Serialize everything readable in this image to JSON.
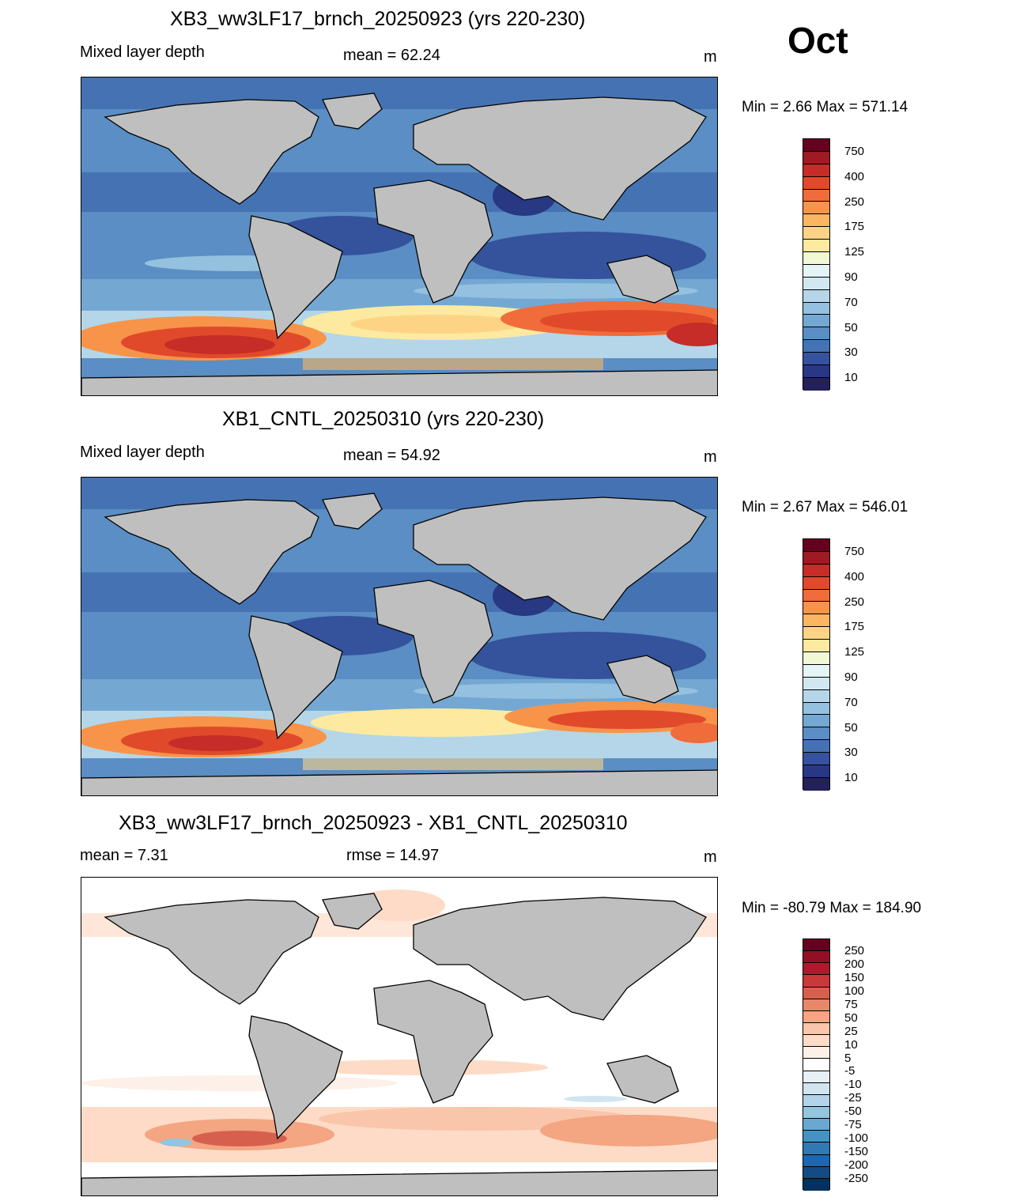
{
  "month": "Oct",
  "panel1": {
    "title": "XB3_ww3LF17_brnch_20250923 (yrs 220-230)",
    "left": "Mixed layer depth",
    "center": "mean =  62.24",
    "right": "m",
    "minmax": "Min =   2.66 Max = 571.14"
  },
  "panel2": {
    "title": "XB1_CNTL_20250310 (yrs 220-230)",
    "left": "Mixed layer depth",
    "center": "mean =  54.92",
    "right": "m",
    "minmax": "Min =   2.67 Max = 546.01"
  },
  "panel3": {
    "title": "XB3_ww3LF17_brnch_20250923 - XB1_CNTL_20250310",
    "left": "mean =   7.31",
    "center": "rmse =  14.97",
    "right": "m",
    "minmax": "Min = -80.79 Max = 184.90"
  },
  "colorbar_abs": {
    "labels": [
      "750",
      "400",
      "250",
      "175",
      "125",
      "90",
      "70",
      "50",
      "30",
      "10"
    ],
    "colors": [
      "#67001f",
      "#9e1b23",
      "#c62c28",
      "#e04a2a",
      "#f06c3a",
      "#f79449",
      "#fcb661",
      "#fdd485",
      "#fdeaa0",
      "#f2f7d4",
      "#e6f4f5",
      "#d1e8f1",
      "#b4d6e8",
      "#94c1df",
      "#74a8d2",
      "#5a8ec4",
      "#4572b2",
      "#34539c",
      "#283883",
      "#24205c"
    ]
  },
  "colorbar_diff": {
    "labels": [
      "250",
      "200",
      "150",
      "100",
      "75",
      "50",
      "25",
      "10",
      "5",
      "-5",
      "-10",
      "-25",
      "-50",
      "-75",
      "-100",
      "-150",
      "-200",
      "-250"
    ],
    "colors": [
      "#67001f",
      "#930f26",
      "#b2182b",
      "#c9393a",
      "#d6604d",
      "#e8876a",
      "#f4a582",
      "#f9c5ab",
      "#fddbc7",
      "#fdf0e8",
      "#ffffff",
      "#e6f0f6",
      "#d1e5f0",
      "#b2d3e8",
      "#92c5de",
      "#6aa8cf",
      "#4393c3",
      "#2f79b5",
      "#2166ac",
      "#134b87",
      "#053061"
    ]
  }
}
